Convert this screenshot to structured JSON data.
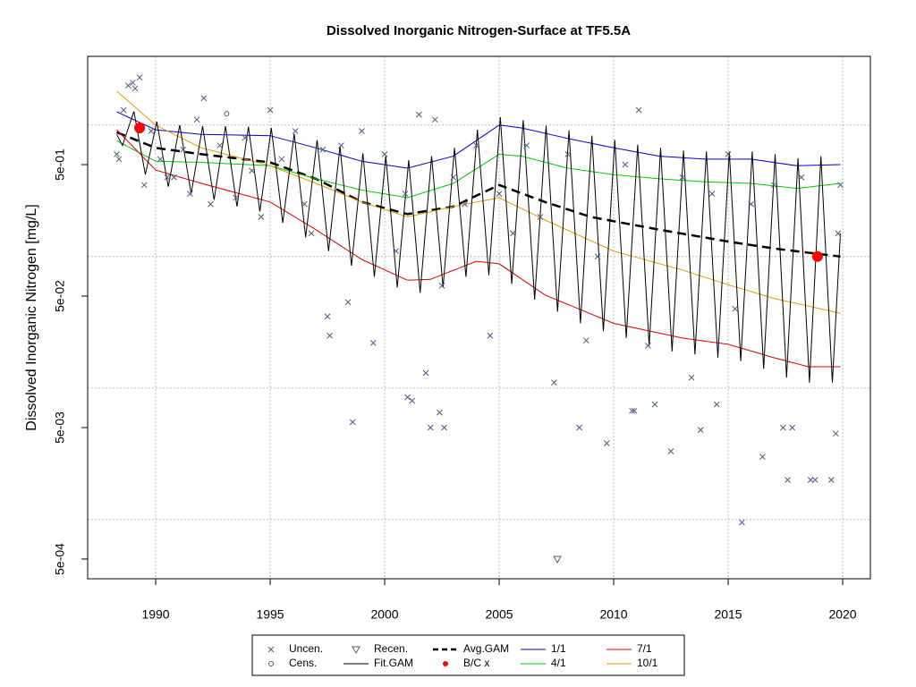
{
  "chart_data": {
    "type": "line",
    "title": "Dissolved Inorganic Nitrogen-Surface at TF5.5A",
    "y_label": "Dissolved Inorganic Nitrogen [mg/L]",
    "log_y": true,
    "grid": true,
    "xlim": [
      1987.03,
      2021.21
    ],
    "ylim": [
      0.000354,
      3.33
    ],
    "xticks": [
      1990,
      1995,
      2000,
      2005,
      2010,
      2015,
      2020
    ],
    "yticks": [
      {
        "value": 0.0005,
        "label": "5e-04"
      },
      {
        "value": 0.005,
        "label": "5e-03"
      },
      {
        "value": 0.05,
        "label": "5e-02"
      },
      {
        "value": 0.5,
        "label": "5e-01"
      }
    ],
    "ygrid": [
      0.001,
      0.01,
      0.1,
      1
    ],
    "series": [
      {
        "name": "Fit.GAM",
        "color": "#000000",
        "dashed": false,
        "width": 1,
        "x": [
          1988.3,
          1988.55,
          1989.05,
          1989.55,
          1990.05,
          1990.55,
          1991.05,
          1991.55,
          1992.05,
          1992.55,
          1993.05,
          1993.55,
          1994.05,
          1994.55,
          1995.05,
          1995.55,
          1996.05,
          1996.55,
          1997.05,
          1997.55,
          1998.05,
          1998.55,
          1999.05,
          1999.55,
          2000.05,
          2000.55,
          2001.05,
          2001.55,
          2002.05,
          2002.55,
          2003.05,
          2003.55,
          2004.05,
          2004.55,
          2005.05,
          2005.55,
          2006.05,
          2006.55,
          2007.05,
          2007.55,
          2008.05,
          2008.55,
          2009.05,
          2009.55,
          2010.05,
          2010.55,
          2011.05,
          2011.55,
          2012.05,
          2012.55,
          2013.05,
          2013.55,
          2014.05,
          2014.55,
          2015.05,
          2015.55,
          2016.05,
          2016.55,
          2017.05,
          2017.55,
          2018.05,
          2018.55,
          2019.05,
          2019.55,
          2019.9
        ],
        "values": [
          0.85,
          0.7,
          1.27,
          0.42,
          1.06,
          0.34,
          1.0,
          0.3,
          0.98,
          0.27,
          0.98,
          0.24,
          0.97,
          0.22,
          0.95,
          0.18,
          0.86,
          0.14,
          0.77,
          0.11,
          0.69,
          0.085,
          0.61,
          0.07,
          0.58,
          0.058,
          0.54,
          0.053,
          0.58,
          0.058,
          0.67,
          0.07,
          0.92,
          0.072,
          1.15,
          0.062,
          1.09,
          0.047,
          0.99,
          0.038,
          0.91,
          0.031,
          0.83,
          0.027,
          0.77,
          0.024,
          0.71,
          0.021,
          0.67,
          0.019,
          0.64,
          0.018,
          0.63,
          0.017,
          0.63,
          0.016,
          0.63,
          0.014,
          0.6,
          0.012,
          0.56,
          0.011,
          0.58,
          0.011,
          0.15
        ]
      },
      {
        "name": "Avg.GAM",
        "color": "#000000",
        "dashed": true,
        "width": 2.5,
        "x": [
          1988.3,
          1990,
          1992,
          1995,
          1997,
          1999,
          2001,
          2003,
          2005,
          2007,
          2009,
          2012,
          2015,
          2017,
          2019.9
        ],
        "values": [
          0.88,
          0.67,
          0.6,
          0.52,
          0.39,
          0.26,
          0.21,
          0.24,
          0.35,
          0.26,
          0.2,
          0.16,
          0.13,
          0.115,
          0.1
        ]
      },
      {
        "name": "1/1",
        "color": "#0000cc",
        "dashed": false,
        "width": 1,
        "x": [
          1988.3,
          1990,
          1992,
          1995,
          1997,
          1999,
          2001,
          2003,
          2005,
          2006,
          2008,
          2010,
          2012,
          2014,
          2016,
          2018,
          2019.9
        ],
        "values": [
          1.26,
          0.92,
          0.85,
          0.83,
          0.67,
          0.53,
          0.47,
          0.58,
          1.0,
          0.95,
          0.79,
          0.67,
          0.58,
          0.55,
          0.55,
          0.49,
          0.5
        ]
      },
      {
        "name": "4/1",
        "color": "#00cc00",
        "dashed": false,
        "width": 1,
        "x": [
          1988.3,
          1990,
          1992,
          1995,
          1997,
          1999,
          2001,
          2003,
          2005,
          2006,
          2008,
          2010,
          2012,
          2014,
          2016,
          2018,
          2019.9
        ],
        "values": [
          0.76,
          0.53,
          0.52,
          0.49,
          0.39,
          0.32,
          0.28,
          0.36,
          0.6,
          0.58,
          0.47,
          0.42,
          0.39,
          0.37,
          0.36,
          0.33,
          0.36
        ]
      },
      {
        "name": "7/1",
        "color": "#dd0000",
        "dashed": false,
        "width": 1,
        "x": [
          1988.3,
          1990,
          1992,
          1995,
          1997,
          1999,
          2001,
          2002,
          2004,
          2005,
          2007,
          2010,
          2013,
          2015,
          2017,
          2018.5,
          2019.9
        ],
        "values": [
          0.92,
          0.455,
          0.36,
          0.26,
          0.16,
          0.095,
          0.066,
          0.067,
          0.092,
          0.088,
          0.051,
          0.031,
          0.024,
          0.0215,
          0.017,
          0.0145,
          0.0145
        ]
      },
      {
        "name": "10/1",
        "color": "#e69b00",
        "dashed": false,
        "width": 1,
        "x": [
          1988.3,
          1990,
          1992,
          1995,
          1997,
          1999,
          2001,
          2003,
          2005,
          2007,
          2010,
          2013,
          2015,
          2017,
          2019.9
        ],
        "values": [
          1.81,
          1.0,
          0.67,
          0.49,
          0.36,
          0.26,
          0.2,
          0.24,
          0.28,
          0.19,
          0.11,
          0.079,
          0.061,
          0.048,
          0.037
        ]
      }
    ],
    "points": [
      {
        "name": "Uncen.",
        "marker": "x",
        "color": "#4a5a80",
        "x": [
          1988.3,
          1988.4,
          1988.6,
          1988.8,
          1989.0,
          1989.1,
          1989.3,
          1989.5,
          1989.8,
          1990.2,
          1990.5,
          1990.8,
          1991.2,
          1991.5,
          1991.8,
          1992.1,
          1992.4,
          1992.8,
          1993.5,
          1993.9,
          1994.2,
          1994.6,
          1995.0,
          1995.5,
          1996.1,
          1996.5,
          1996.8,
          1997.3,
          1997.5,
          1997.6,
          1998.1,
          1998.4,
          1998.6,
          1999.0,
          1999.5,
          2000.0,
          2000.5,
          2000.9,
          2001.0,
          2001.2,
          2001.5,
          2001.8,
          2002.0,
          2002.2,
          2002.4,
          2002.5,
          2002.6,
          2003.0,
          2003.5,
          2004.0,
          2004.6,
          2005.0,
          2005.6,
          2006.2,
          2006.8,
          2007.4,
          2008.0,
          2008.5,
          2008.8,
          2009.3,
          2009.7,
          2010.5,
          2010.8,
          2010.9,
          2011.1,
          2011.5,
          2011.8,
          2012.5,
          2013.0,
          2013.4,
          2013.8,
          2014.3,
          2014.5,
          2015.0,
          2015.3,
          2015.6,
          2016.0,
          2016.5,
          2017.0,
          2017.4,
          2017.6,
          2017.8,
          2018.2,
          2018.6,
          2018.8,
          2019.5,
          2019.7,
          2019.8,
          2019.9
        ],
        "values": [
          0.6,
          0.55,
          1.3,
          2.0,
          2.1,
          1.9,
          2.3,
          0.35,
          0.9,
          0.55,
          0.4,
          0.4,
          0.65,
          0.3,
          1.1,
          1.6,
          0.25,
          0.7,
          0.28,
          0.8,
          0.45,
          0.2,
          1.3,
          0.55,
          0.9,
          0.25,
          0.15,
          0.65,
          0.035,
          0.025,
          0.7,
          0.045,
          0.0055,
          0.9,
          0.022,
          0.6,
          0.11,
          0.3,
          0.0085,
          0.008,
          1.2,
          0.013,
          0.005,
          1.1,
          0.0065,
          0.06,
          0.005,
          0.4,
          0.25,
          0.7,
          0.025,
          0.3,
          0.15,
          0.7,
          0.2,
          0.011,
          0.6,
          0.005,
          0.023,
          0.1,
          0.0038,
          0.5,
          0.0067,
          0.0067,
          1.3,
          0.021,
          0.0075,
          0.0033,
          0.4,
          0.012,
          0.0048,
          0.3,
          0.0075,
          0.6,
          0.04,
          0.00095,
          0.25,
          0.003,
          0.35,
          0.005,
          0.002,
          0.005,
          0.4,
          0.002,
          0.002,
          0.002,
          0.0045,
          0.15,
          0.35
        ]
      },
      {
        "name": "Cens.",
        "marker": "circle",
        "color": "#4a5a80",
        "x": [
          1993.1
        ],
        "values": [
          1.22
        ]
      },
      {
        "name": "Recen.",
        "marker": "triangle",
        "color": "#4a5a80",
        "x": [
          2007.54
        ],
        "values": [
          0.0005
        ]
      },
      {
        "name": "B/C x",
        "marker": "dot",
        "color": "#ff0000",
        "x": [
          1989.3,
          2018.9
        ],
        "values": [
          0.95,
          0.1
        ]
      }
    ]
  }
}
